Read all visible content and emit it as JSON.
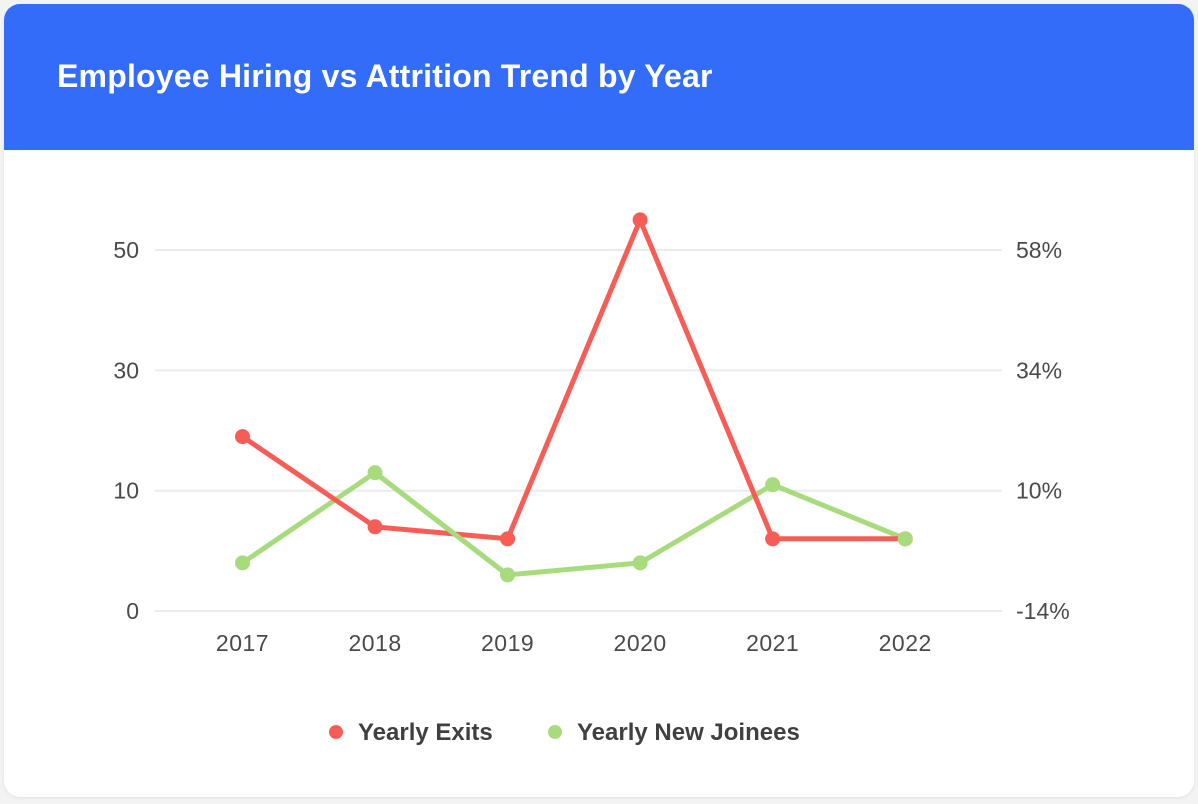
{
  "header": {
    "title": "Employee Hiring vs Attrition Trend by Year"
  },
  "chart_data": {
    "type": "line",
    "title": "Employee Hiring vs Attrition Trend by Year",
    "categories": [
      "2017",
      "2018",
      "2019",
      "2020",
      "2021",
      "2022"
    ],
    "series": [
      {
        "name": "Yearly Exits",
        "color": "#F75D57",
        "values": [
          19,
          7,
          6,
          55,
          6,
          6
        ]
      },
      {
        "name": "Yearly New Joinees",
        "color": "#A8DB7D",
        "values": [
          4,
          13,
          3,
          4,
          11,
          6
        ]
      }
    ],
    "left_axis": {
      "tick_labels": [
        "0",
        "10",
        "30",
        "50"
      ],
      "tick_values": [
        0,
        10,
        30,
        50
      ]
    },
    "right_axis": {
      "tick_labels": [
        "-14%",
        "10%",
        "34%",
        "58%"
      ]
    },
    "legend": {
      "position": "bottom",
      "items": [
        "Yearly Exits",
        "Yearly New Joinees"
      ]
    },
    "grid": true,
    "marker": "circle"
  },
  "colors": {
    "header_bg": "#346CFA",
    "header_text": "#FFFFFF",
    "card_bg": "#FFFFFF",
    "page_bg": "#F3F3F4",
    "gridline": "#EBEBEB",
    "axis_text": "#4A4A4A",
    "legend_text": "#404040"
  }
}
